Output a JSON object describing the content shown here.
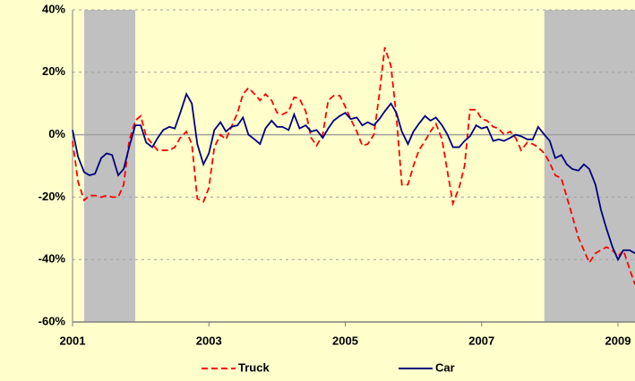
{
  "chart_data": {
    "type": "line",
    "x": [
      2001,
      2001.08,
      2001.17,
      2001.25,
      2001.33,
      2001.42,
      2001.5,
      2001.58,
      2001.67,
      2001.75,
      2001.83,
      2001.92,
      2002,
      2002.08,
      2002.17,
      2002.25,
      2002.33,
      2002.42,
      2002.5,
      2002.58,
      2002.67,
      2002.75,
      2002.83,
      2002.92,
      2003,
      2003.08,
      2003.17,
      2003.25,
      2003.33,
      2003.42,
      2003.5,
      2003.58,
      2003.67,
      2003.75,
      2003.83,
      2003.92,
      2004,
      2004.08,
      2004.17,
      2004.25,
      2004.33,
      2004.42,
      2004.5,
      2004.58,
      2004.67,
      2004.75,
      2004.83,
      2004.92,
      2005,
      2005.08,
      2005.17,
      2005.25,
      2005.33,
      2005.42,
      2005.5,
      2005.58,
      2005.67,
      2005.75,
      2005.83,
      2005.92,
      2006,
      2006.08,
      2006.17,
      2006.25,
      2006.33,
      2006.42,
      2006.5,
      2006.58,
      2006.67,
      2006.75,
      2006.83,
      2006.92,
      2007,
      2007.08,
      2007.17,
      2007.25,
      2007.33,
      2007.42,
      2007.5,
      2007.58,
      2007.67,
      2007.75,
      2007.83,
      2007.92,
      2008,
      2008.08,
      2008.17,
      2008.25,
      2008.33,
      2008.42,
      2008.5,
      2008.58,
      2008.67,
      2008.75,
      2008.83,
      2008.92,
      2009,
      2009.08,
      2009.17,
      2009.25
    ],
    "series": [
      {
        "name": "Truck",
        "color": "#ff0000",
        "dashed": true,
        "values": [
          -2,
          -15,
          -21,
          -19.5,
          -19.5,
          -20,
          -19.5,
          -20,
          -20,
          -16,
          -2,
          4.5,
          6,
          -0.5,
          -3,
          -5,
          -5,
          -5,
          -4,
          -1,
          1,
          -3,
          -20.5,
          -21.5,
          -17,
          -4,
          0,
          -1.5,
          2.5,
          7,
          13,
          15,
          13,
          11,
          13,
          11,
          7,
          6.5,
          7.5,
          12,
          11.5,
          7.5,
          -1,
          -3.5,
          0,
          11,
          12.5,
          12.5,
          9,
          5,
          1,
          -3.5,
          -3,
          0,
          13,
          28,
          22,
          6,
          -16,
          -16,
          -10,
          -5,
          -2,
          1,
          3.5,
          -1.5,
          -12,
          -22,
          -17,
          -10,
          8,
          8,
          5,
          4.5,
          2.5,
          2,
          0,
          1,
          -1,
          -5,
          -2.5,
          -3,
          -4,
          -6,
          -9,
          -13,
          -14,
          -20,
          -26,
          -33,
          -37,
          -41,
          -38,
          -37,
          -36,
          -37,
          -39,
          -37,
          -43,
          -48
        ]
      },
      {
        "name": "Car",
        "color": "#000080",
        "dashed": false,
        "values": [
          1.5,
          -7,
          -12,
          -13,
          -12.5,
          -7.5,
          -6,
          -6.5,
          -13,
          -11,
          -4,
          3,
          3,
          -2.5,
          -4,
          -1,
          1.5,
          2.5,
          2,
          7,
          13,
          10,
          -3,
          -9.5,
          -6,
          1.5,
          4,
          1,
          2.5,
          3,
          5.5,
          0,
          -1.5,
          -3,
          2,
          4.5,
          2.5,
          2.5,
          1.5,
          6.5,
          2,
          3,
          1,
          1.5,
          -1,
          2,
          4.5,
          6,
          7,
          5,
          5.5,
          3,
          4,
          3,
          5,
          7.5,
          10,
          7,
          1,
          -3,
          1,
          3.5,
          6,
          4.5,
          5.5,
          3,
          0,
          -4,
          -4,
          -2,
          -0.5,
          3,
          2,
          2.5,
          -2,
          -1.5,
          -2,
          -1,
          0,
          -0.5,
          -1.5,
          -1.5,
          2.5,
          0,
          -2,
          -7.5,
          -6.5,
          -9.5,
          -11,
          -11.5,
          -9.5,
          -11,
          -16,
          -24,
          -30,
          -36,
          -40,
          -37,
          -37,
          -38
        ]
      }
    ],
    "shaded_regions": [
      [
        2001.17,
        2001.92
      ],
      [
        2007.92,
        2009.25
      ]
    ],
    "shade_color": "#c0c0c0",
    "xlim": [
      2001,
      2009.25
    ],
    "xticks": [
      2001,
      2003,
      2005,
      2007,
      2009
    ],
    "ylim": [
      -60,
      40
    ],
    "yticks": [
      {
        "value": -60,
        "label": "-60%"
      },
      {
        "value": -40,
        "label": "-40%"
      },
      {
        "value": -20,
        "label": "-20%"
      },
      {
        "value": 0,
        "label": "0%"
      },
      {
        "value": 20,
        "label": "20%"
      },
      {
        "value": 40,
        "label": "40%"
      }
    ],
    "grid": true,
    "legend": "bottom"
  }
}
